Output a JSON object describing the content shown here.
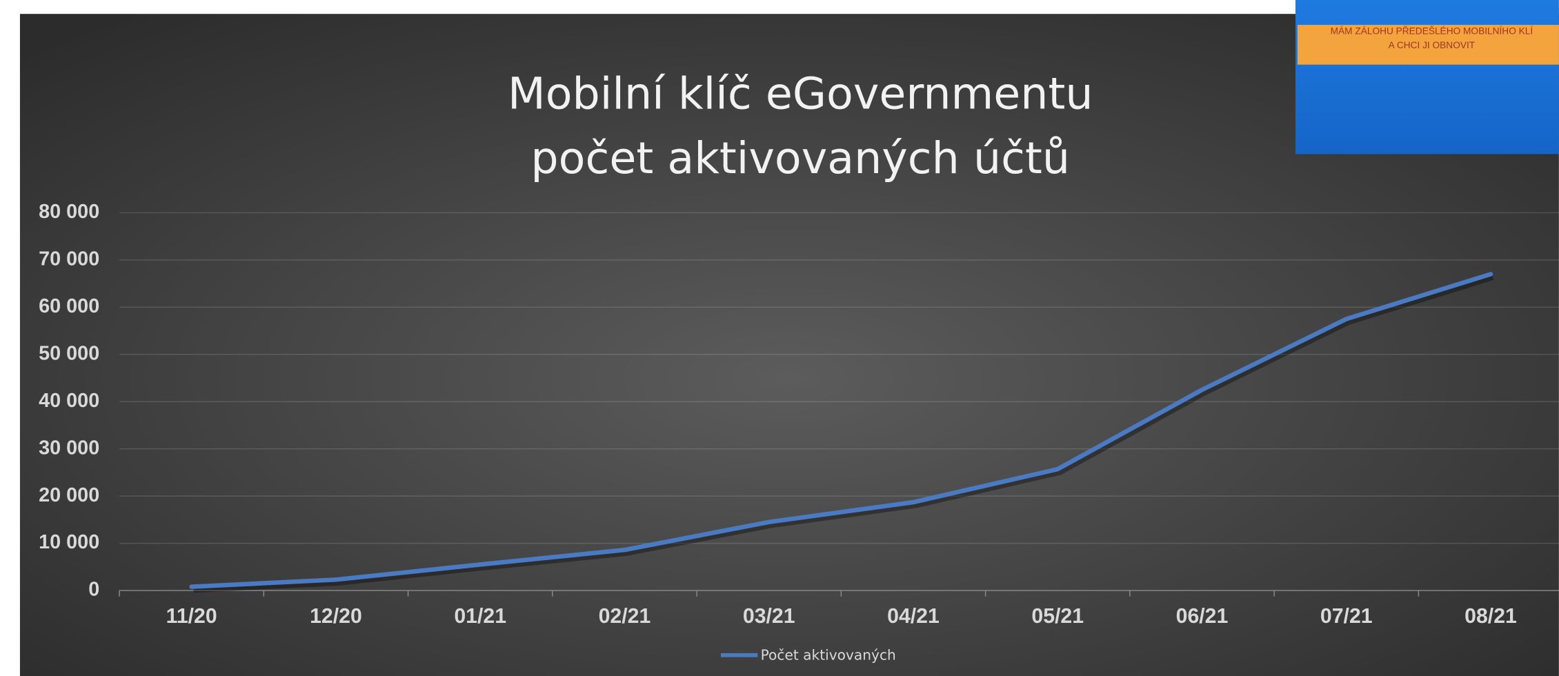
{
  "chart_data": {
    "type": "line",
    "title": [
      "Mobilní klíč eGovernmentu",
      "počet aktivovaných účtů"
    ],
    "annotations": [
      "MÁM ZÁLOHU PŘEDEŠLÉHO MOBILNÍHO KLÍ",
      "A CHCI JI OBNOVIT"
    ],
    "categories": [
      "11/20",
      "12/20",
      "01/21",
      "02/21",
      "03/21",
      "04/21",
      "05/21",
      "06/21",
      "07/21",
      "08/21"
    ],
    "series": [
      {
        "name": "Počet aktivovaných",
        "color": "#4a7bc2",
        "values": [
          800,
          2300,
          5500,
          8600,
          14500,
          18700,
          25700,
          42500,
          57500,
          67000
        ]
      }
    ],
    "ylim": [
      0,
      80000
    ],
    "yticks": [
      0,
      {
        "value": 10000,
        "label": "10 000"
      },
      {
        "value": 20000,
        "label": "20 000"
      },
      {
        "value": 30000,
        "label": "30 000"
      },
      {
        "value": 40000,
        "label": "40 000"
      },
      {
        "value": 50000,
        "label": "50 000"
      },
      {
        "value": 60000,
        "label": "60 000"
      },
      {
        "value": 70000,
        "label": "70 000"
      },
      {
        "value": 80000,
        "label": "80 000"
      }
    ],
    "grid": true,
    "legend": "bottom"
  }
}
